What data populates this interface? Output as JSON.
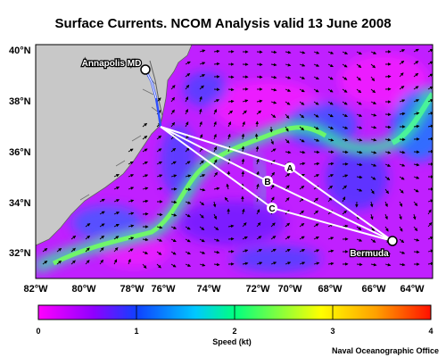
{
  "title": "Surface Currents. NCOM Analysis valid 13 June 2008",
  "lat_labels": [
    "40°N",
    "38°N",
    "36°N",
    "34°N",
    "32°N"
  ],
  "lon_labels": [
    "82°W",
    "80°W",
    "78°W",
    "76°W",
    "74°W",
    "72°W",
    "70°W",
    "68°W",
    "66°W",
    "64°W"
  ],
  "places": {
    "start": "Annapolis MD",
    "end": "Bermuda"
  },
  "routes": [
    {
      "label": "A",
      "color": "#ffffff"
    },
    {
      "label": "B",
      "color": "#ffffff"
    },
    {
      "label": "C",
      "color": "#ffffff"
    }
  ],
  "colorbar": {
    "label": "Speed (kt)",
    "ticks": [
      "0",
      "1",
      "2",
      "3",
      "4"
    ],
    "stops": [
      "#ff00ff",
      "#8000ff",
      "#1040ff",
      "#00c0ff",
      "#00ff80",
      "#ffff00",
      "#ffa000",
      "#ff1000"
    ]
  },
  "credit": "Naval Oceanographic Office",
  "colors": {
    "ocean_slow": "#c020ff",
    "current_fast": "#40ff80",
    "land": "#c8c8c8"
  }
}
